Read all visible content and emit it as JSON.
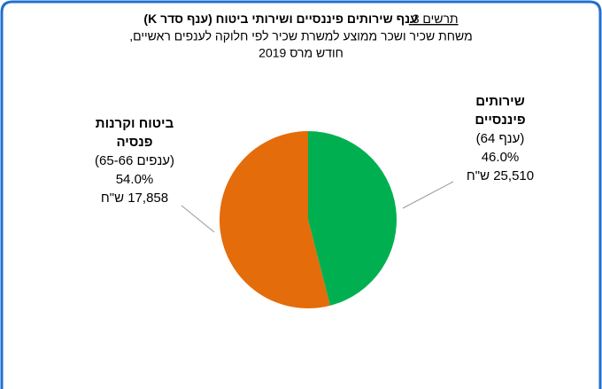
{
  "chart_data": {
    "type": "pie",
    "title_prefix": "תרשים 3.",
    "title": "ענף שירותים פיננסיים ושירותי ביטוח (ענף סדר K)",
    "subtitle": [
      "משחת שכיר ושכר ממוצע למשרת שכיר לפי חלוקה לענפים ראשיים,",
      "חודש מרס 2019"
    ],
    "categories": [
      [
        "שירותים",
        "פיננסיים"
      ],
      [
        "ביטוח וקרנות",
        "פנסיה"
      ]
    ],
    "codes": [
      "(ענף 64)",
      "(ענפים 65-66)"
    ],
    "values": [
      46.0,
      54.0
    ],
    "value_labels": [
      "46.0%",
      "54.0%"
    ],
    "wages": [
      "25,510 ש\"ח",
      "17,858 ש\"ח"
    ],
    "colors": [
      "#00b050",
      "#e46c0a"
    ]
  }
}
